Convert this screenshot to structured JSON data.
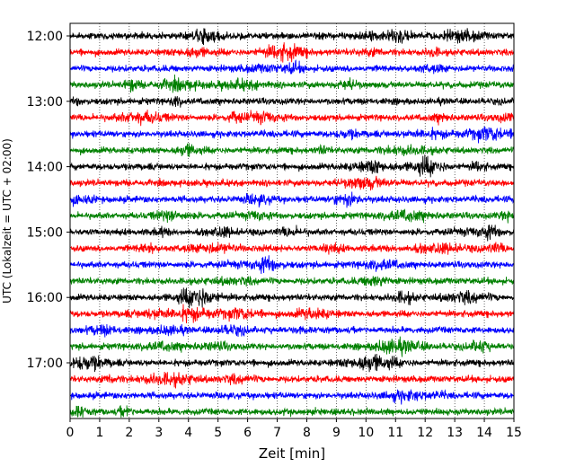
{
  "chart_data": {
    "type": "line",
    "title": "",
    "xlabel": "Zeit  [min]",
    "ylabel": "UTC (Lokalzeit = UTC + 02:00)",
    "xlim": [
      0,
      15
    ],
    "x_ticks": [
      0,
      1,
      2,
      3,
      4,
      5,
      6,
      7,
      8,
      9,
      10,
      11,
      12,
      13,
      14,
      15
    ],
    "y_tick_labels": [
      "12:00",
      "13:00",
      "14:00",
      "15:00",
      "16:00",
      "17:00"
    ],
    "grid": "vertical-dotted",
    "legend": "none",
    "trace_interval_minutes": 15,
    "trace_colors": [
      "#000000",
      "#ff0000",
      "#0000ff",
      "#008000"
    ],
    "series": [
      {
        "start": "12:00",
        "color": "#000000"
      },
      {
        "start": "12:15",
        "color": "#ff0000"
      },
      {
        "start": "12:30",
        "color": "#0000ff"
      },
      {
        "start": "12:45",
        "color": "#008000"
      },
      {
        "start": "13:00",
        "color": "#000000"
      },
      {
        "start": "13:15",
        "color": "#ff0000"
      },
      {
        "start": "13:30",
        "color": "#0000ff"
      },
      {
        "start": "13:45",
        "color": "#008000"
      },
      {
        "start": "14:00",
        "color": "#000000"
      },
      {
        "start": "14:15",
        "color": "#ff0000"
      },
      {
        "start": "14:30",
        "color": "#0000ff"
      },
      {
        "start": "14:45",
        "color": "#008000"
      },
      {
        "start": "15:00",
        "color": "#000000"
      },
      {
        "start": "15:15",
        "color": "#ff0000"
      },
      {
        "start": "15:30",
        "color": "#0000ff"
      },
      {
        "start": "15:45",
        "color": "#008000"
      },
      {
        "start": "16:00",
        "color": "#000000"
      },
      {
        "start": "16:15",
        "color": "#ff0000"
      },
      {
        "start": "16:30",
        "color": "#0000ff"
      },
      {
        "start": "16:45",
        "color": "#008000"
      },
      {
        "start": "17:00",
        "color": "#000000"
      },
      {
        "start": "17:15",
        "color": "#ff0000"
      },
      {
        "start": "17:30",
        "color": "#0000ff"
      },
      {
        "start": "17:45",
        "color": "#008000"
      }
    ]
  }
}
